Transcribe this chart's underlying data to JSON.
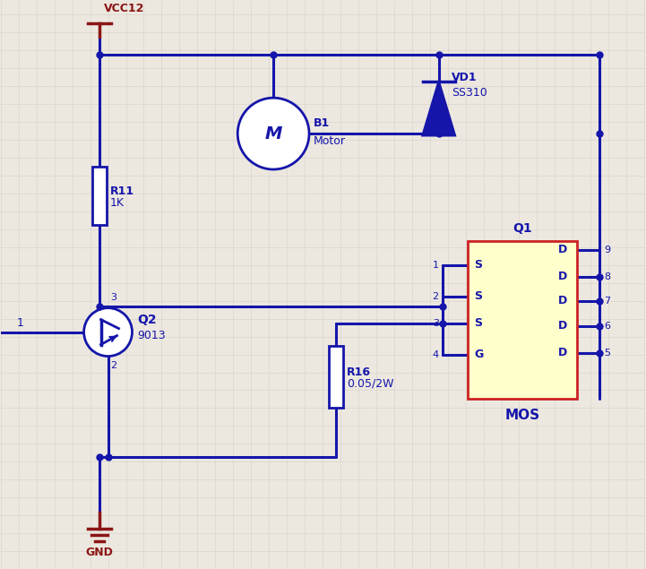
{
  "bg_color": "#ece8e0",
  "grid_color": "#d5d0c8",
  "wire_color": "#1515aa",
  "red_color": "#8b1515",
  "comp_color": "#1515aa",
  "mos_fill": "#ffffcc",
  "mos_border": "#cc2222",
  "vcc_label": "VCC12",
  "gnd_label": "GND",
  "q1_label": "Q1",
  "q2_label": "Q2",
  "q2_val": "9013",
  "b1_label": "B1",
  "b1_val": "Motor",
  "vd1_label": "VD1",
  "vd1_val": "SS310",
  "r11_label": "R11",
  "r11_val": "1K",
  "r16_label": "R16",
  "r16_val": "0.05/2W",
  "mos_label": "MOS",
  "lw": 2.2,
  "dot_r": 5
}
